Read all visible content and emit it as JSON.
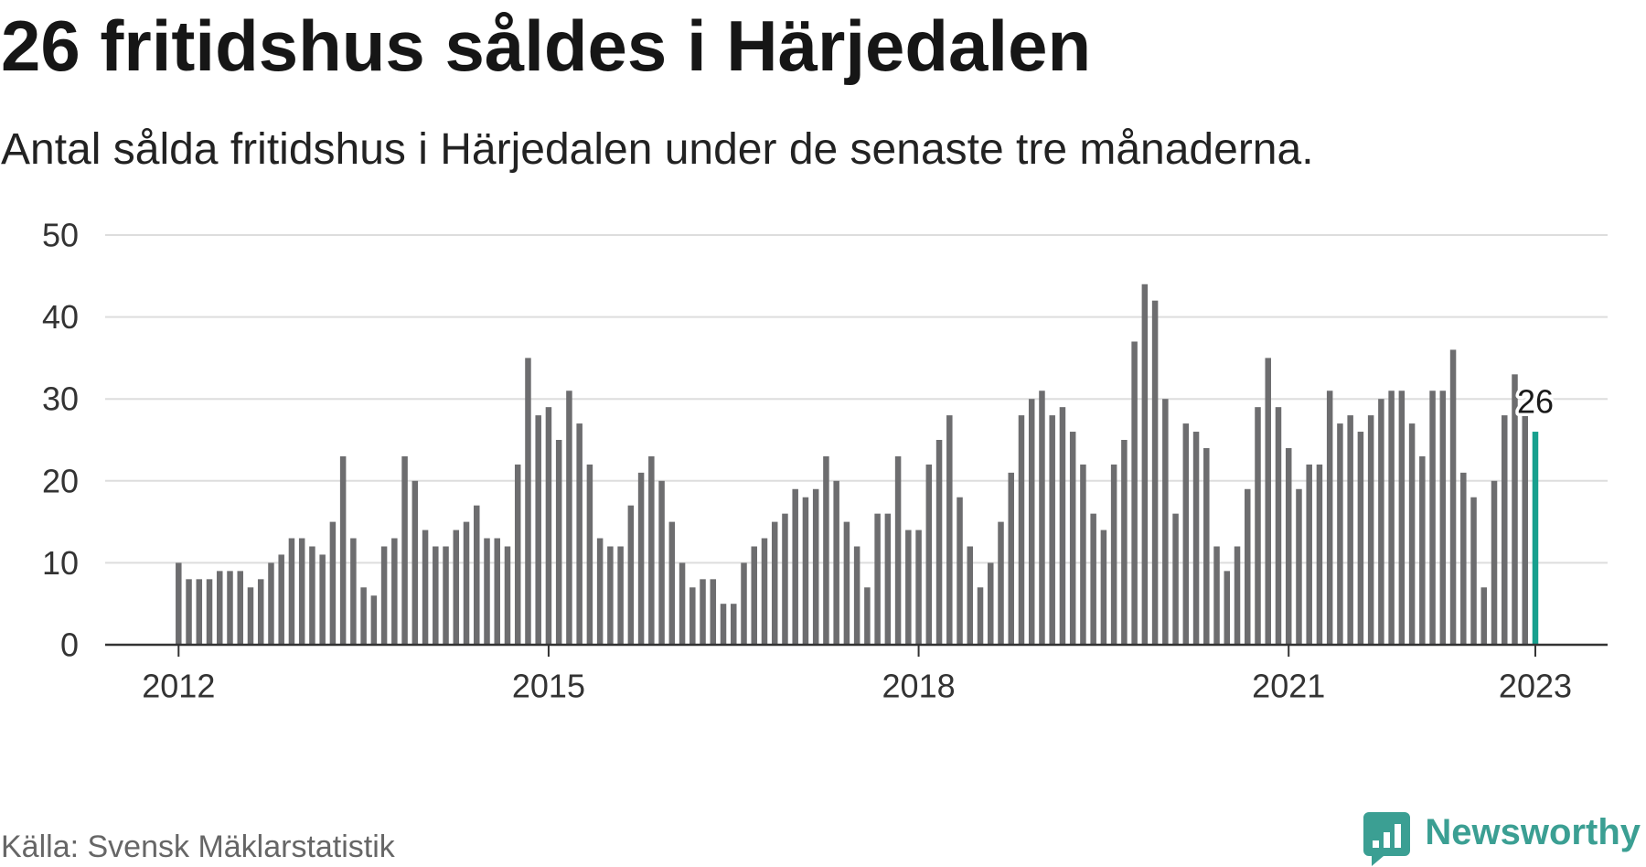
{
  "chart_data": {
    "type": "bar",
    "title": "26 fritidshus såldes i Härjedalen",
    "subtitle": "Antal sålda fritidshus i Härjedalen under de senaste tre månaderna.",
    "x": [
      "2012-01",
      "2012-02",
      "2012-03",
      "2012-04",
      "2012-05",
      "2012-06",
      "2012-07",
      "2012-08",
      "2012-09",
      "2012-10",
      "2012-11",
      "2012-12",
      "2013-01",
      "2013-02",
      "2013-03",
      "2013-04",
      "2013-05",
      "2013-06",
      "2013-07",
      "2013-08",
      "2013-09",
      "2013-10",
      "2013-11",
      "2013-12",
      "2014-01",
      "2014-02",
      "2014-03",
      "2014-04",
      "2014-05",
      "2014-06",
      "2014-07",
      "2014-08",
      "2014-09",
      "2014-10",
      "2014-11",
      "2014-12",
      "2015-01",
      "2015-02",
      "2015-03",
      "2015-04",
      "2015-05",
      "2015-06",
      "2015-07",
      "2015-08",
      "2015-09",
      "2015-10",
      "2015-11",
      "2015-12",
      "2016-01",
      "2016-02",
      "2016-03",
      "2016-04",
      "2016-05",
      "2016-06",
      "2016-07",
      "2016-08",
      "2016-09",
      "2016-10",
      "2016-11",
      "2016-12",
      "2017-01",
      "2017-02",
      "2017-03",
      "2017-04",
      "2017-05",
      "2017-06",
      "2017-07",
      "2017-08",
      "2017-09",
      "2017-10",
      "2017-11",
      "2017-12",
      "2018-01",
      "2018-02",
      "2018-03",
      "2018-04",
      "2018-05",
      "2018-06",
      "2018-07",
      "2018-08",
      "2018-09",
      "2018-10",
      "2018-11",
      "2018-12",
      "2019-01",
      "2019-02",
      "2019-03",
      "2019-04",
      "2019-05",
      "2019-06",
      "2019-07",
      "2019-08",
      "2019-09",
      "2019-10",
      "2019-11",
      "2019-12",
      "2020-01",
      "2020-02",
      "2020-03",
      "2020-04",
      "2020-05",
      "2020-06",
      "2020-07",
      "2020-08",
      "2020-09",
      "2020-10",
      "2020-11",
      "2020-12",
      "2021-01",
      "2021-02",
      "2021-03",
      "2021-04",
      "2021-05",
      "2021-06",
      "2021-07",
      "2021-08",
      "2021-09",
      "2021-10",
      "2021-11",
      "2021-12",
      "2022-01",
      "2022-02",
      "2022-03",
      "2022-04",
      "2022-05",
      "2022-06",
      "2022-07",
      "2022-08",
      "2022-09",
      "2022-10",
      "2022-11",
      "2022-12",
      "2023-01"
    ],
    "values": [
      10,
      8,
      8,
      8,
      9,
      9,
      9,
      7,
      8,
      10,
      11,
      13,
      13,
      12,
      11,
      15,
      23,
      13,
      7,
      6,
      12,
      13,
      23,
      20,
      14,
      12,
      12,
      14,
      15,
      17,
      13,
      13,
      12,
      22,
      35,
      28,
      29,
      25,
      31,
      27,
      22,
      13,
      12,
      12,
      17,
      21,
      23,
      20,
      15,
      10,
      7,
      8,
      8,
      5,
      5,
      10,
      12,
      13,
      15,
      16,
      19,
      18,
      19,
      23,
      20,
      15,
      12,
      7,
      16,
      16,
      23,
      14,
      14,
      22,
      25,
      28,
      18,
      12,
      7,
      10,
      15,
      21,
      28,
      30,
      31,
      28,
      29,
      26,
      22,
      16,
      14,
      22,
      25,
      37,
      44,
      42,
      30,
      16,
      27,
      26,
      24,
      12,
      9,
      12,
      19,
      29,
      35,
      29,
      24,
      19,
      22,
      22,
      31,
      27,
      28,
      26,
      28,
      30,
      31,
      31,
      27,
      23,
      31,
      31,
      36,
      21,
      18,
      7,
      20,
      28,
      33,
      28,
      26
    ],
    "ylim": [
      0,
      50
    ],
    "yticks": [
      0,
      10,
      20,
      30,
      40,
      50
    ],
    "xticks": [
      {
        "label": "2012",
        "x": "2012-01"
      },
      {
        "label": "2015",
        "x": "2015-01"
      },
      {
        "label": "2018",
        "x": "2018-01"
      },
      {
        "label": "2021",
        "x": "2021-01"
      },
      {
        "label": "2023",
        "x": "2023-01"
      }
    ],
    "grid": true,
    "bar_color": "#6d6d6f",
    "highlight": {
      "x": "2023-01",
      "label": "26",
      "color": "#17a08e"
    }
  },
  "footer": {
    "source": "Källa: Svensk Mäklarstatistik",
    "brand": {
      "name": "Newsworthy",
      "icon": "newsworthy-logo-icon",
      "color": "#3b9f93"
    }
  }
}
